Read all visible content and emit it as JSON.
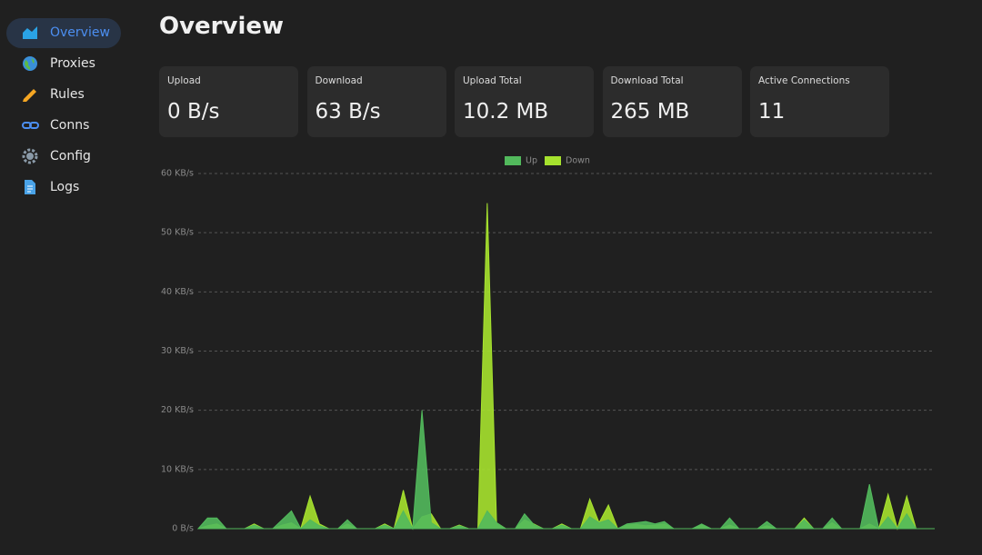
{
  "nav": [
    {
      "label": "Overview"
    },
    {
      "label": "Proxies"
    },
    {
      "label": "Rules"
    },
    {
      "label": "Conns"
    },
    {
      "label": "Config"
    },
    {
      "label": "Logs"
    }
  ],
  "header": {
    "title": "Overview"
  },
  "cards": [
    {
      "label": "Upload",
      "value": "0 B/s"
    },
    {
      "label": "Download",
      "value": "63 B/s"
    },
    {
      "label": "Upload Total",
      "value": "10.2 MB"
    },
    {
      "label": "Download Total",
      "value": "265 MB"
    },
    {
      "label": "Active Connections",
      "value": "11"
    }
  ],
  "chart_data": {
    "type": "area",
    "legend": "top",
    "series": [
      {
        "name": "Up",
        "color": "#52b95c",
        "values": [
          0,
          1.8,
          1.8,
          0,
          0,
          0,
          0.6,
          0,
          0,
          1.5,
          3,
          0,
          1.5,
          0.5,
          0,
          0,
          1.5,
          0,
          0,
          0,
          0.6,
          0,
          3,
          0,
          20,
          1,
          0,
          0,
          0.5,
          0,
          0,
          3,
          1,
          0,
          0,
          2.5,
          0.7,
          0,
          0,
          0.6,
          0,
          0,
          2,
          1,
          1.5,
          0,
          0.8,
          1,
          1.2,
          0.8,
          1.2,
          0,
          0,
          0,
          0.8,
          0,
          0,
          1.8,
          0,
          0,
          0,
          1.2,
          0,
          0,
          0,
          1.5,
          0,
          0,
          1.8,
          0,
          0,
          0,
          7.5,
          0,
          2,
          0,
          2.5,
          0,
          0,
          0
        ]
      },
      {
        "name": "Down",
        "color": "#a6e22e",
        "values": [
          0,
          0.5,
          0.8,
          0,
          0,
          0,
          0.8,
          0,
          0,
          0.6,
          1,
          0,
          5.5,
          0.8,
          0,
          0,
          0.8,
          0,
          0,
          0,
          0.8,
          0,
          6.5,
          0,
          2,
          2.5,
          0,
          0,
          0.6,
          0,
          0,
          55,
          1,
          0,
          0,
          1.5,
          0.8,
          0,
          0,
          0.8,
          0,
          0,
          5,
          1,
          4,
          0,
          0.6,
          0.7,
          0.5,
          0.6,
          0.8,
          0,
          0,
          0,
          0.6,
          0,
          0,
          0.6,
          0,
          0,
          0,
          0.5,
          0,
          0,
          0,
          1.8,
          0,
          0,
          1,
          0,
          0,
          0,
          0.8,
          0,
          5.8,
          0,
          5.5,
          0,
          0,
          0
        ]
      }
    ],
    "ylim": [
      0,
      60
    ],
    "yticks": [
      {
        "value": 0,
        "label": "0 B/s"
      },
      {
        "value": 10,
        "label": "10 KB/s"
      },
      {
        "value": 20,
        "label": "20 KB/s"
      },
      {
        "value": 30,
        "label": "30 KB/s"
      },
      {
        "value": 40,
        "label": "40 KB/s"
      },
      {
        "value": 50,
        "label": "50 KB/s"
      },
      {
        "value": 60,
        "label": "60 KB/s"
      }
    ],
    "grid": true
  }
}
